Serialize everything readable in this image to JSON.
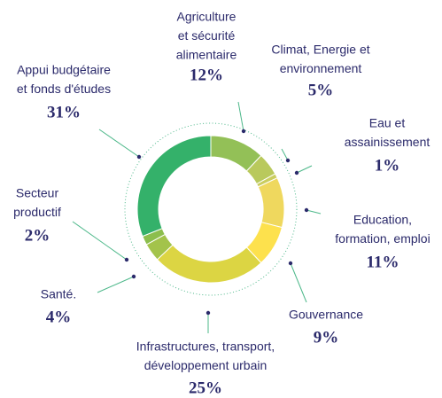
{
  "chart_data": {
    "type": "donut",
    "categories": [
      [
        "Agriculture",
        "et sécurité",
        "alimentaire"
      ],
      [
        "Climat, Energie et",
        "environnement"
      ],
      [
        "Eau et",
        "assainissement"
      ],
      [
        "Education,",
        "formation, emploi"
      ],
      [
        "Gouvernance"
      ],
      [
        "Infrastructures, transport,",
        "développement urbain"
      ],
      [
        "Santé."
      ],
      [
        "Secteur",
        "productif"
      ],
      [
        "Appui budgétaire",
        "et fonds d'études"
      ]
    ],
    "values": [
      12,
      5,
      1,
      11,
      9,
      25,
      4,
      2,
      31
    ],
    "value_labels": [
      "12%",
      "5%",
      "1%",
      "11%",
      "9%",
      "25%",
      "4%",
      "2%",
      "31%"
    ],
    "colors": [
      "#93c057",
      "#b9c95c",
      "#cacd5f",
      "#efd85e",
      "#fde14d",
      "#dcd543",
      "#a3c34b",
      "#8cbe4d",
      "#34b16a"
    ]
  }
}
